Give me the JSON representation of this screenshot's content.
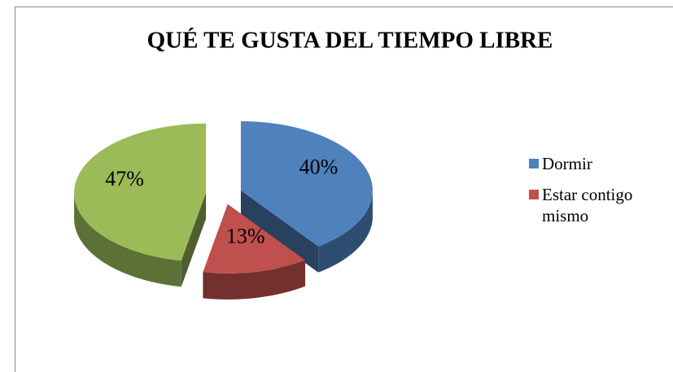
{
  "chart_data": {
    "type": "pie",
    "title": "QUÉ TE GUSTA DEL TIEMPO LIBRE",
    "categories": [
      "Dormir",
      "Estar contigo mismo",
      null
    ],
    "values": [
      40,
      13,
      47
    ],
    "value_labels": [
      "40%",
      "13%",
      "47%"
    ],
    "colors": [
      "#4f81bd",
      "#c0504d",
      "#9bbb59"
    ],
    "legend": "right"
  }
}
